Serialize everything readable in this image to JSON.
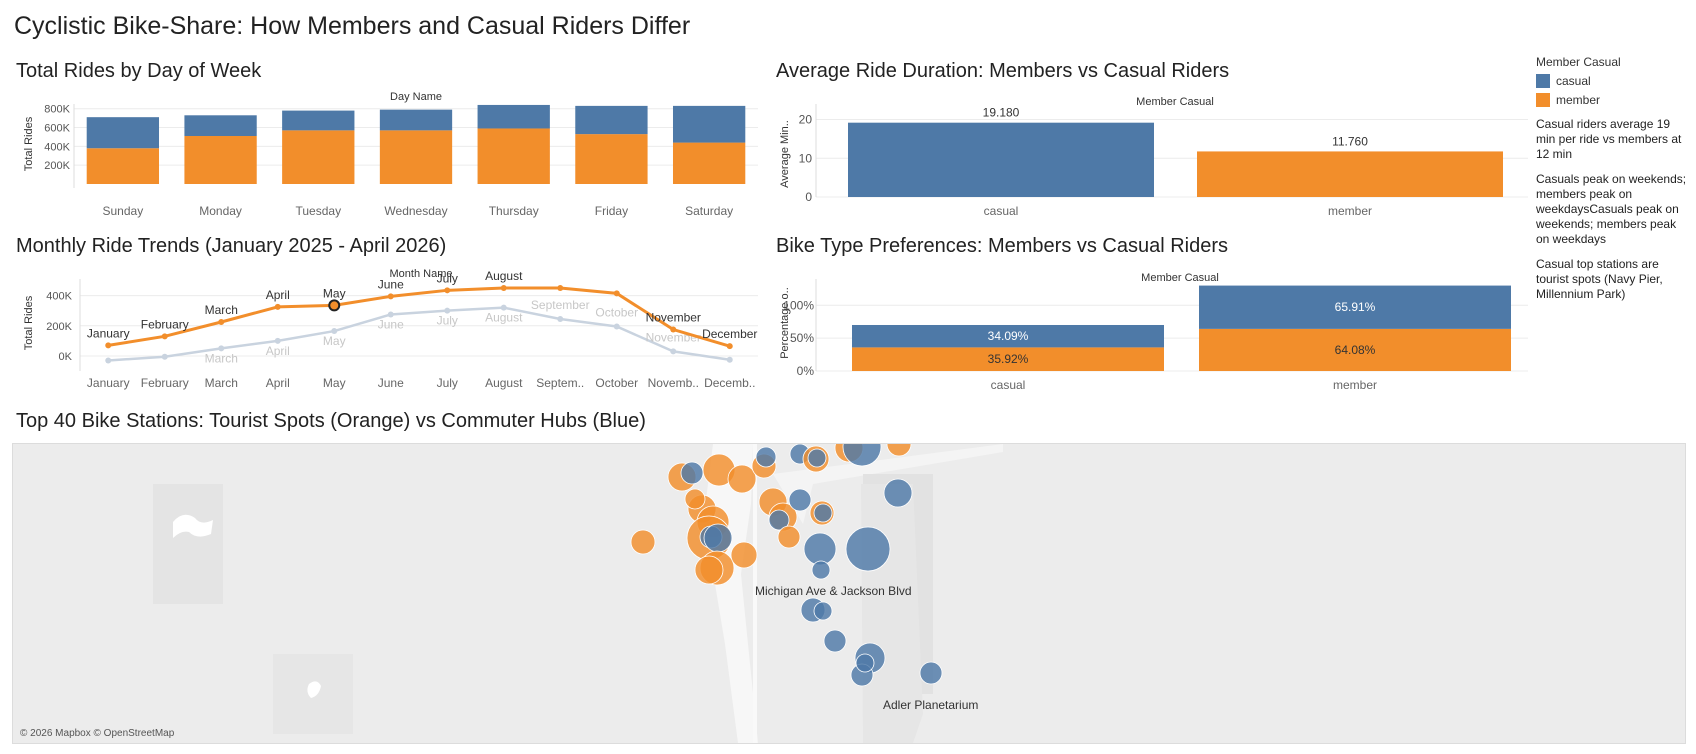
{
  "dashboard": {
    "title": "Cyclistic Bike-Share: How Members and Casual Riders Differ"
  },
  "colors": {
    "casual": "#4e79a7",
    "member": "#f28e2b",
    "faded": "#c9d3df",
    "grid": "#ececec",
    "axis": "#dddddd"
  },
  "legend": {
    "title": "Member Casual",
    "items": [
      {
        "label": "casual",
        "color": "#4e79a7"
      },
      {
        "label": "member",
        "color": "#f28e2b"
      }
    ],
    "notes": [
      "Casual riders average 19 min per ride vs members at 12 min",
      "Casuals peak on weekends; members peak on weekdaysCasuals peak on weekends; members peak on weekdays",
      "Casual top stations are tourist spots (Navy Pier, Millennium Park)"
    ]
  },
  "chart_data": [
    {
      "id": "rides_by_day",
      "type": "bar",
      "title": "Total Rides by Day of Week",
      "header": "Day Name",
      "ylabel": "Total Rides",
      "yticks": [
        "200K",
        "400K",
        "600K",
        "800K"
      ],
      "ylim": [
        0,
        850000
      ],
      "categories": [
        "Sunday",
        "Monday",
        "Tuesday",
        "Wednesday",
        "Thursday",
        "Friday",
        "Saturday"
      ],
      "series": [
        {
          "name": "member",
          "values": [
            380000,
            510000,
            570000,
            570000,
            590000,
            530000,
            440000
          ]
        },
        {
          "name": "casual",
          "values": [
            330000,
            220000,
            210000,
            220000,
            250000,
            300000,
            390000
          ]
        }
      ],
      "stacked": true
    },
    {
      "id": "avg_duration",
      "type": "bar",
      "title": "Average Ride Duration: Members vs Casual Riders",
      "header": "Member Casual",
      "ylabel": "Average Min..",
      "yticks": [
        "0",
        "10",
        "20"
      ],
      "ylim": [
        0,
        24
      ],
      "categories": [
        "casual",
        "member"
      ],
      "values": [
        19.18,
        11.76
      ],
      "value_labels": [
        "19.180",
        "11.760"
      ]
    },
    {
      "id": "monthly_trends",
      "type": "line",
      "title": "Monthly Ride Trends (January 2025 - April 2026)",
      "header": "Month Name",
      "ylabel": "Total Rides",
      "yticks": [
        "0K",
        "200K",
        "400K"
      ],
      "ylim": [
        -60000,
        510000
      ],
      "x": [
        "January",
        "February",
        "March",
        "April",
        "May",
        "June",
        "July",
        "August",
        "Septem..",
        "October",
        "Novemb..",
        "Decemb.."
      ],
      "series": [
        {
          "name": "highlighted",
          "values": [
            70000,
            130000,
            225000,
            325000,
            335000,
            395000,
            435000,
            450000,
            450000,
            415000,
            175000,
            65000
          ],
          "point_labels": [
            "January",
            "February",
            "March",
            "April",
            "May",
            "June",
            "July",
            "August",
            "",
            "",
            "November",
            "December"
          ],
          "selected_index": 4
        },
        {
          "name": "faded",
          "values": [
            -30000,
            -5000,
            50000,
            100000,
            165000,
            275000,
            300000,
            320000,
            245000,
            195000,
            30000,
            -25000
          ],
          "point_labels": [
            "",
            "",
            "March",
            "April",
            "May",
            "June",
            "July",
            "August",
            "September",
            "October",
            "November",
            ""
          ]
        }
      ],
      "grid": true
    },
    {
      "id": "bike_type",
      "type": "bar",
      "title": "Bike Type Preferences: Members vs Casual Riders",
      "header": "Member Casual",
      "ylabel": "Percentage o..",
      "yticks": [
        "0%",
        "50%",
        "100%"
      ],
      "ylim": [
        0,
        1.4
      ],
      "categories": [
        "casual",
        "member"
      ],
      "series": [
        {
          "name": "member",
          "values": [
            0.3592,
            0.6408
          ],
          "labels": [
            "35.92%",
            "64.08%"
          ]
        },
        {
          "name": "casual",
          "values": [
            0.3409,
            0.6591
          ],
          "labels": [
            "34.09%",
            "65.91%"
          ]
        }
      ],
      "stacked": true
    },
    {
      "id": "station_map",
      "type": "scatter",
      "title": "Top 40 Bike Stations: Tourist Spots (Orange) vs Commuter Hubs (Blue)",
      "place_labels": [
        "Michigan Ave & Jackson Blvd",
        "Adler Planetarium"
      ],
      "attribution": "© 2026 Mapbox © OpenStreetMap"
    }
  ]
}
